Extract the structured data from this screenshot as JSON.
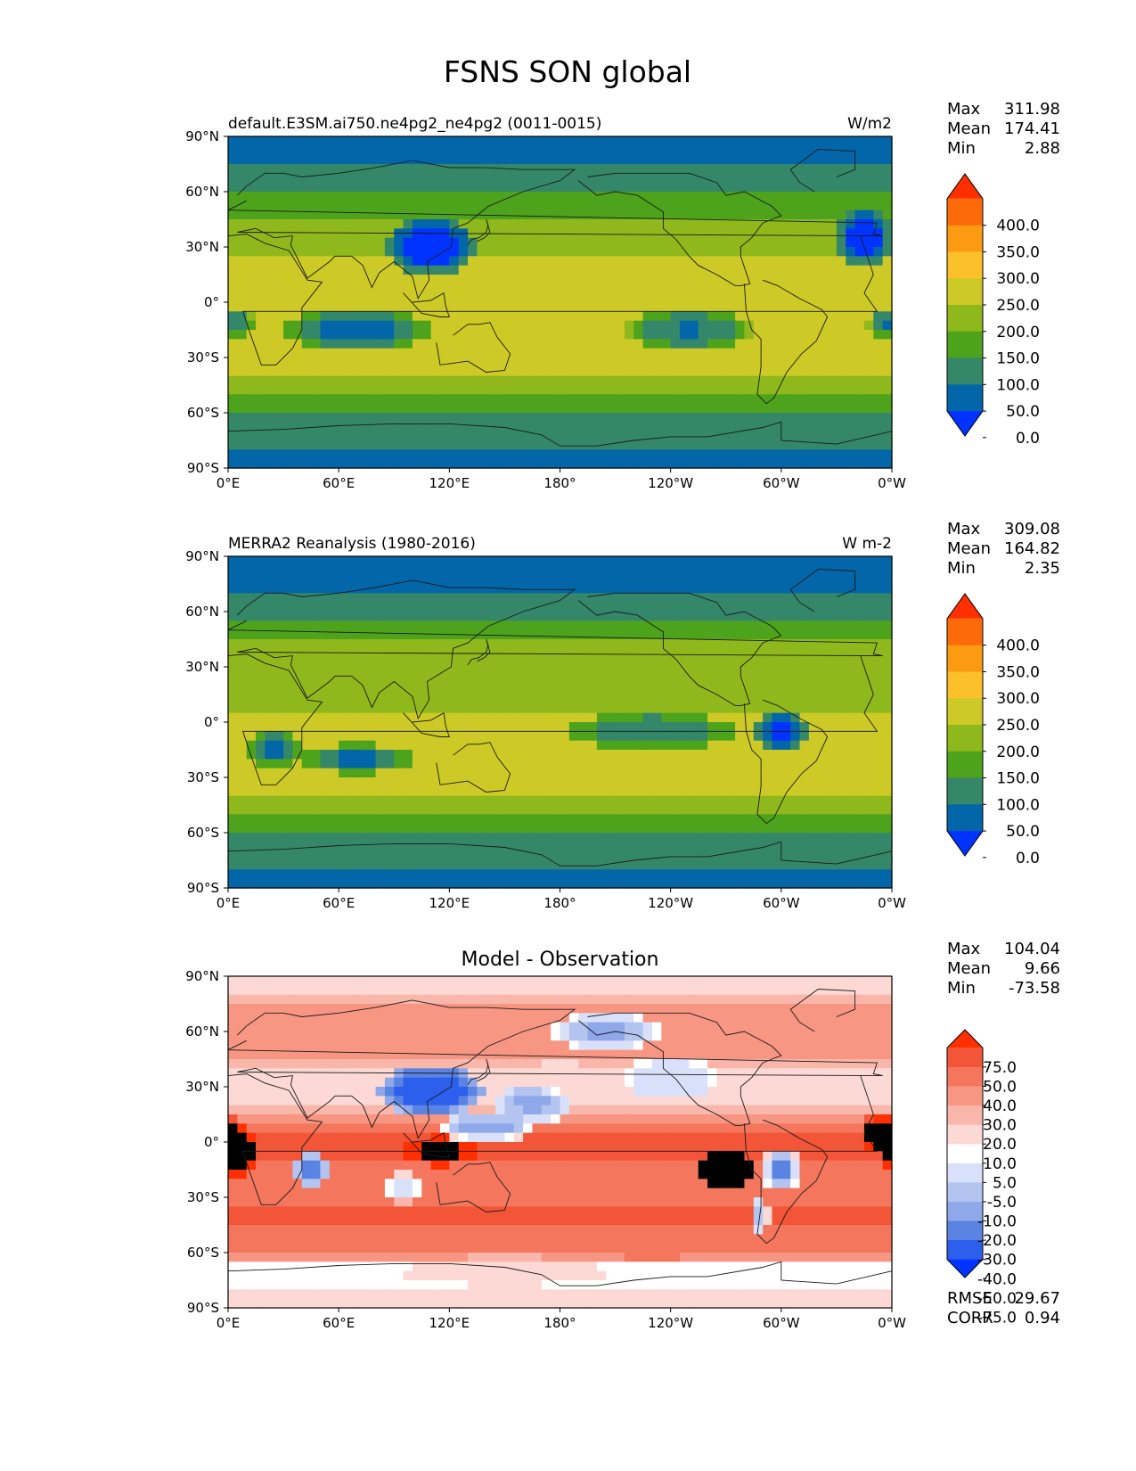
{
  "figure": {
    "title": "FSNS SON global"
  },
  "colors": {
    "main_levels": [
      "#0033ff",
      "#0266a8",
      "#35876a",
      "#4ea31c",
      "#8fb81c",
      "#cdc926",
      "#fcc12a",
      "#fc9b12",
      "#fc6a0a",
      "#ff2f00"
    ],
    "diff_levels": [
      "#0033ff",
      "#2c5fec",
      "#5a83e2",
      "#8ea8ea",
      "#b4c4f0",
      "#d9e0f9",
      "#ffffff",
      "#fcd9d4",
      "#f9b6aa",
      "#f79683",
      "#f4765d",
      "#f25538",
      "#ff2f00"
    ],
    "ocean": "#0266a8",
    "coast": "#1a1a1a"
  },
  "chart_data": [
    {
      "type": "heatmap",
      "panel": "test",
      "title": "default.E3SM.ai750.ne4pg2_ne4pg2 (0011-0015)",
      "units": "W/m2",
      "xlabel": "",
      "ylabel": "",
      "xlim": [
        0,
        360
      ],
      "ylim": [
        -90,
        90
      ],
      "xticks": [
        "0°E",
        "60°E",
        "120°E",
        "180°",
        "120°W",
        "60°W",
        "0°W"
      ],
      "yticks": [
        "90°S",
        "60°S",
        "30°S",
        "0°",
        "30°N",
        "60°N",
        "90°N"
      ],
      "stats": {
        "max_label": "Max",
        "max": "311.98",
        "mean_label": "Mean",
        "mean": "174.41",
        "min_label": "Min",
        "min": "2.88"
      },
      "colorbar": {
        "levels": [
          "400.0",
          "350.0",
          "300.0",
          "250.0",
          "200.0",
          "150.0",
          "100.0",
          "50.0",
          "0.0"
        ],
        "extend": "both"
      },
      "zonal_profile": {
        "lat": [
          90,
          75,
          62,
          55,
          45,
          35,
          22,
          10,
          0,
          -10,
          -20,
          -30,
          -40,
          -50,
          -58,
          -65,
          -72,
          -90
        ],
        "value": [
          40,
          45,
          75,
          115,
          150,
          180,
          205,
          225,
          235,
          245,
          250,
          235,
          195,
          150,
          115,
          85,
          55,
          40
        ]
      },
      "anomalies": [
        {
          "lon": 110,
          "lat": 30,
          "rlon": 25,
          "rlat": 15,
          "value": -60
        },
        {
          "lon": 250,
          "lat": -15,
          "rlon": 35,
          "rlat": 12,
          "value": 40
        },
        {
          "lon": 5,
          "lat": -12,
          "rlon": 10,
          "rlat": 8,
          "value": 50
        },
        {
          "lon": 355,
          "lat": -12,
          "rlon": 8,
          "rlat": 8,
          "value": 45
        },
        {
          "lon": 345,
          "lat": 35,
          "rlon": 15,
          "rlat": 15,
          "value": -40
        },
        {
          "lon": 70,
          "lat": -15,
          "rlon": 40,
          "rlat": 12,
          "value": 15
        }
      ]
    },
    {
      "type": "heatmap",
      "panel": "reference",
      "title": "MERRA2 Reanalysis (1980-2016)",
      "units": "W m-2",
      "xlabel": "",
      "ylabel": "",
      "xlim": [
        0,
        360
      ],
      "ylim": [
        -90,
        90
      ],
      "xticks": [
        "0°E",
        "60°E",
        "120°E",
        "180°",
        "120°W",
        "60°W",
        "0°W"
      ],
      "yticks": [
        "90°S",
        "60°S",
        "30°S",
        "0°",
        "30°N",
        "60°N",
        "90°N"
      ],
      "stats": {
        "max_label": "Max",
        "max": "309.08",
        "mean_label": "Mean",
        "mean": "164.82",
        "min_label": "Min",
        "min": "2.35"
      },
      "colorbar": {
        "levels": [
          "400.0",
          "350.0",
          "300.0",
          "250.0",
          "200.0",
          "150.0",
          "100.0",
          "50.0",
          "0.0"
        ],
        "extend": "both"
      },
      "zonal_profile": {
        "lat": [
          90,
          75,
          65,
          58,
          50,
          40,
          30,
          18,
          5,
          -5,
          -15,
          -25,
          -35,
          -45,
          -55,
          -62,
          -70,
          -90
        ],
        "value": [
          30,
          40,
          60,
          90,
          130,
          160,
          175,
          190,
          200,
          210,
          225,
          240,
          215,
          165,
          120,
          85,
          60,
          40
        ]
      },
      "anomalies": [
        {
          "lon": 230,
          "lat": -5,
          "rlon": 45,
          "rlat": 10,
          "value": 45
        },
        {
          "lon": 25,
          "lat": -15,
          "rlon": 15,
          "rlat": 10,
          "value": 30
        },
        {
          "lon": 300,
          "lat": -5,
          "rlon": 15,
          "rlat": 12,
          "value": -30
        },
        {
          "lon": 70,
          "lat": -20,
          "rlon": 30,
          "rlat": 8,
          "value": 20
        }
      ]
    },
    {
      "type": "heatmap",
      "panel": "difference",
      "title": "Model - Observation",
      "units": "",
      "xlabel": "",
      "ylabel": "",
      "xlim": [
        0,
        360
      ],
      "ylim": [
        -90,
        90
      ],
      "xticks": [
        "0°E",
        "60°E",
        "120°E",
        "180°",
        "120°W",
        "60°W",
        "0°W"
      ],
      "yticks": [
        "90°S",
        "60°S",
        "30°S",
        "0°",
        "30°N",
        "60°N",
        "90°N"
      ],
      "stats": {
        "max_label": "Max",
        "max": "104.04",
        "mean_label": "Mean",
        "mean": "9.66",
        "min_label": "Min",
        "min": "-73.58"
      },
      "metrics": {
        "rmse_label": "RMSE",
        "rmse": "29.67",
        "corr_label": "CORR",
        "corr": "0.94"
      },
      "colorbar": {
        "levels": [
          "75.0",
          "50.0",
          "40.0",
          "30.0",
          "20.0",
          "10.0",
          "5.0",
          "-5.0",
          "-10.0",
          "-20.0",
          "-30.0",
          "-40.0",
          "-50.0",
          "-75.0"
        ],
        "extend": "both"
      },
      "zonal_profile": {
        "lat": [
          90,
          70,
          55,
          40,
          25,
          10,
          0,
          -10,
          -25,
          -40,
          -52,
          -60,
          -68,
          -80,
          -90
        ],
        "value": [
          0,
          12,
          15,
          5,
          -5,
          20,
          40,
          30,
          20,
          35,
          25,
          25,
          -12,
          -5,
          -5
        ]
      },
      "anomalies": [
        {
          "lon": 110,
          "lat": 28,
          "rlon": 28,
          "rlat": 14,
          "value": -70
        },
        {
          "lon": 140,
          "lat": 8,
          "rlon": 25,
          "rlat": 8,
          "value": -40
        },
        {
          "lon": 165,
          "lat": 20,
          "rlon": 20,
          "rlat": 10,
          "value": -35
        },
        {
          "lon": 205,
          "lat": 60,
          "rlon": 30,
          "rlat": 10,
          "value": -35
        },
        {
          "lon": 240,
          "lat": 35,
          "rlon": 25,
          "rlat": 12,
          "value": -20
        },
        {
          "lon": 45,
          "lat": -15,
          "rlon": 10,
          "rlat": 10,
          "value": -55
        },
        {
          "lon": 300,
          "lat": -15,
          "rlon": 10,
          "rlat": 12,
          "value": -45
        },
        {
          "lon": 288,
          "lat": -40,
          "rlon": 5,
          "rlat": 12,
          "value": -30
        },
        {
          "lon": 95,
          "lat": -25,
          "rlon": 12,
          "rlat": 8,
          "value": -20
        },
        {
          "lon": 60,
          "lat": 55,
          "rlon": 25,
          "rlat": 10,
          "value": 10
        },
        {
          "lon": 270,
          "lat": -15,
          "rlon": 15,
          "rlat": 12,
          "value": 80
        },
        {
          "lon": 115,
          "lat": -5,
          "rlon": 20,
          "rlat": 8,
          "value": 55
        },
        {
          "lon": 5,
          "lat": -5,
          "rlon": 10,
          "rlat": 15,
          "value": 60
        },
        {
          "lon": 355,
          "lat": 5,
          "rlon": 12,
          "rlat": 10,
          "value": 60
        },
        {
          "lon": 180,
          "lat": 35,
          "rlon": 25,
          "rlat": 8,
          "value": 0
        },
        {
          "lon": 230,
          "lat": -55,
          "rlon": 45,
          "rlat": 8,
          "value": 30
        },
        {
          "lon": 150,
          "lat": -70,
          "rlon": 60,
          "rlat": 8,
          "value": 0
        }
      ]
    }
  ]
}
